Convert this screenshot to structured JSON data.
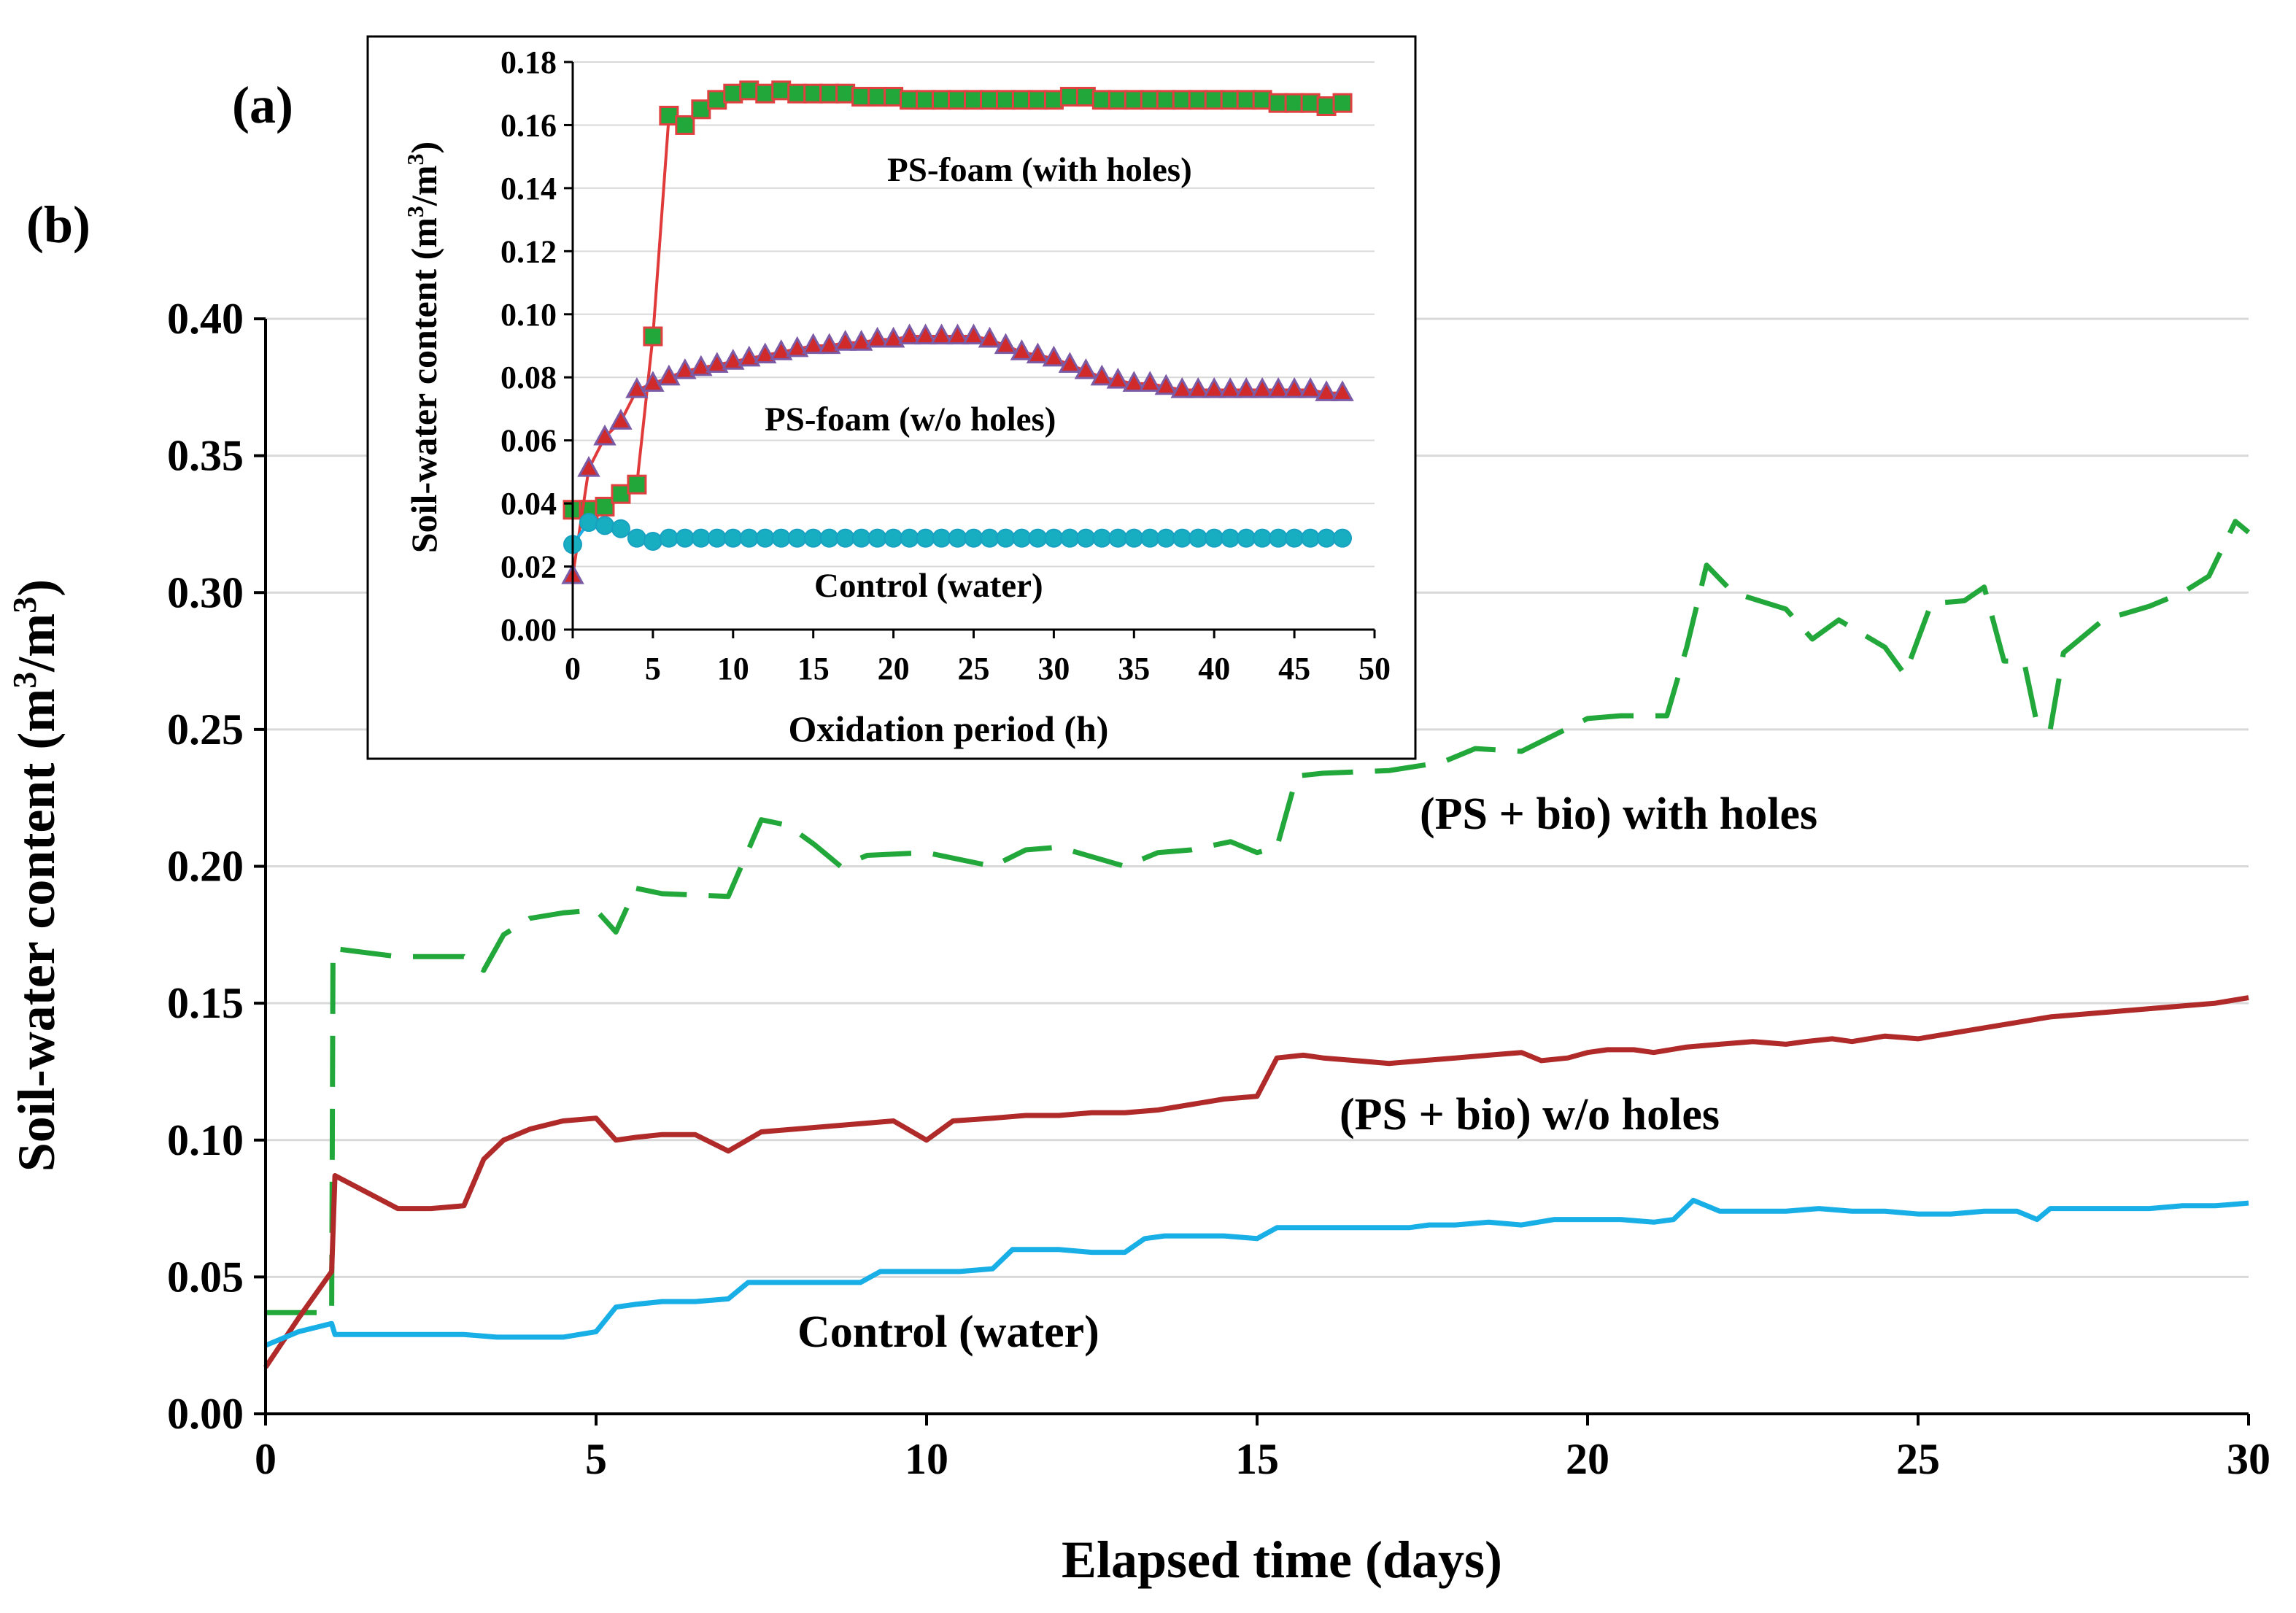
{
  "chart_data": [
    {
      "panel_label": "(b)",
      "type": "line",
      "xlabel": "Elapsed time (days)",
      "ylabel_main": "Soil-water content (m",
      "ylabel_sup1": "3",
      "ylabel_mid": "/m",
      "ylabel_sup2": "3",
      "ylabel_end": ")",
      "xlim": [
        0,
        30
      ],
      "ylim": [
        0,
        0.4
      ],
      "xticks": [
        "0",
        "5",
        "10",
        "15",
        "20",
        "25",
        "30"
      ],
      "yticks": [
        "0.00",
        "0.05",
        "0.10",
        "0.15",
        "0.20",
        "0.25",
        "0.30",
        "0.35",
        "0.40"
      ],
      "grid": "horizontal",
      "series": [
        {
          "name": "(PS + bio) with holes",
          "color": "#22a83a",
          "style": "dashed",
          "x": [
            0,
            1,
            1.02,
            2,
            3,
            3.3,
            3.6,
            4,
            4.5,
            5,
            5.3,
            5.6,
            6,
            7,
            7.5,
            7.9,
            8.3,
            8.7,
            9.1,
            10,
            11,
            11.5,
            12,
            13,
            13.5,
            14,
            14.6,
            15,
            15.3,
            15.6,
            16,
            17,
            17.8,
            18.3,
            19,
            20,
            20.5,
            21.2,
            21.5,
            21.8,
            22.2,
            23,
            23.4,
            23.8,
            24.5,
            24.8,
            25.2,
            25.7,
            26,
            26.3,
            26.6,
            26.8,
            27,
            27.2,
            27.8,
            28.5,
            29,
            29.4,
            29.8,
            30
          ],
          "values": [
            0.037,
            0.037,
            0.17,
            0.167,
            0.167,
            0.162,
            0.175,
            0.181,
            0.183,
            0.184,
            0.176,
            0.192,
            0.19,
            0.189,
            0.217,
            0.215,
            0.208,
            0.2,
            0.204,
            0.205,
            0.2,
            0.206,
            0.207,
            0.2,
            0.205,
            0.206,
            0.209,
            0.205,
            0.207,
            0.233,
            0.234,
            0.235,
            0.238,
            0.243,
            0.242,
            0.254,
            0.255,
            0.255,
            0.28,
            0.31,
            0.3,
            0.294,
            0.283,
            0.29,
            0.28,
            0.27,
            0.296,
            0.297,
            0.302,
            0.275,
            0.275,
            0.252,
            0.25,
            0.278,
            0.29,
            0.295,
            0.3,
            0.306,
            0.326,
            0.322
          ]
        },
        {
          "name": "(PS + bio) w/o holes",
          "color": "#b02a2a",
          "style": "solid",
          "x": [
            0,
            0.5,
            1,
            1.05,
            2,
            2.5,
            3,
            3.3,
            3.6,
            4,
            4.5,
            5,
            5.3,
            5.6,
            6,
            6.5,
            7,
            7.5,
            8,
            8.5,
            9,
            9.5,
            10,
            10.4,
            11,
            11.5,
            12,
            12.5,
            13,
            13.5,
            14,
            14.5,
            15,
            15.3,
            15.7,
            16,
            16.5,
            17,
            17.5,
            18,
            18.5,
            19,
            19.3,
            19.7,
            20,
            20.3,
            20.7,
            21,
            21.5,
            22,
            22.5,
            23,
            23.3,
            23.7,
            24,
            24.5,
            25,
            25.5,
            26,
            26.5,
            27,
            27.5,
            28,
            28.5,
            29,
            29.5,
            30
          ],
          "values": [
            0.017,
            0.035,
            0.052,
            0.087,
            0.075,
            0.075,
            0.076,
            0.093,
            0.1,
            0.104,
            0.107,
            0.108,
            0.1,
            0.101,
            0.102,
            0.102,
            0.096,
            0.103,
            0.104,
            0.105,
            0.106,
            0.107,
            0.1,
            0.107,
            0.108,
            0.109,
            0.109,
            0.11,
            0.11,
            0.111,
            0.113,
            0.115,
            0.116,
            0.13,
            0.131,
            0.13,
            0.129,
            0.128,
            0.129,
            0.13,
            0.131,
            0.132,
            0.129,
            0.13,
            0.132,
            0.133,
            0.133,
            0.132,
            0.134,
            0.135,
            0.136,
            0.135,
            0.136,
            0.137,
            0.136,
            0.138,
            0.137,
            0.139,
            0.141,
            0.143,
            0.145,
            0.146,
            0.147,
            0.148,
            0.149,
            0.15,
            0.152
          ]
        },
        {
          "name": "Control (water)",
          "color": "#18aee6",
          "style": "solid",
          "x": [
            0,
            0.5,
            1,
            1.05,
            2,
            3,
            3.5,
            4,
            4.5,
            5,
            5.3,
            5.6,
            6,
            6.5,
            7,
            7.3,
            7.6,
            8,
            8.5,
            9,
            9.3,
            9.6,
            10,
            10.5,
            11,
            11.3,
            11.6,
            12,
            12.5,
            13,
            13.3,
            13.6,
            14,
            14.5,
            15,
            15.3,
            15.6,
            16,
            16.5,
            17,
            17.3,
            17.6,
            18,
            18.5,
            19,
            19.5,
            20,
            20.5,
            21,
            21.3,
            21.6,
            22,
            22.5,
            23,
            23.5,
            24,
            24.5,
            25,
            25.5,
            26,
            26.5,
            26.8,
            27,
            27.5,
            28,
            28.5,
            29,
            29.5,
            30
          ],
          "values": [
            0.025,
            0.03,
            0.033,
            0.029,
            0.029,
            0.029,
            0.028,
            0.028,
            0.028,
            0.03,
            0.039,
            0.04,
            0.041,
            0.041,
            0.042,
            0.048,
            0.048,
            0.048,
            0.048,
            0.048,
            0.052,
            0.052,
            0.052,
            0.052,
            0.053,
            0.06,
            0.06,
            0.06,
            0.059,
            0.059,
            0.064,
            0.065,
            0.065,
            0.065,
            0.064,
            0.068,
            0.068,
            0.068,
            0.068,
            0.068,
            0.068,
            0.069,
            0.069,
            0.07,
            0.069,
            0.071,
            0.071,
            0.071,
            0.07,
            0.071,
            0.078,
            0.074,
            0.074,
            0.074,
            0.075,
            0.074,
            0.074,
            0.073,
            0.073,
            0.074,
            0.074,
            0.071,
            0.075,
            0.075,
            0.075,
            0.075,
            0.076,
            0.076,
            0.077
          ]
        }
      ]
    },
    {
      "panel_label": "(a)",
      "type": "line",
      "xlabel": "Oxidation period (h)",
      "ylabel_main": "Soil-water content (m",
      "ylabel_sup1": "3",
      "ylabel_mid": "/m",
      "ylabel_sup2": "3",
      "ylabel_end": ")",
      "xlim": [
        0,
        50
      ],
      "ylim": [
        0,
        0.18
      ],
      "xticks": [
        "0",
        "5",
        "10",
        "15",
        "20",
        "25",
        "30",
        "35",
        "40",
        "45",
        "50"
      ],
      "yticks": [
        "0.00",
        "0.02",
        "0.04",
        "0.06",
        "0.08",
        "0.10",
        "0.12",
        "0.14",
        "0.16",
        "0.18"
      ],
      "grid": "horizontal",
      "series": [
        {
          "name": "PS-foam (with holes)",
          "marker": "square",
          "color": "#e03a3a",
          "marker_fill": "#22a83a",
          "x": [
            0,
            1,
            2,
            3,
            4,
            5,
            6,
            7,
            8,
            9,
            10,
            11,
            12,
            13,
            14,
            15,
            16,
            17,
            18,
            19,
            20,
            21,
            22,
            23,
            24,
            25,
            26,
            27,
            28,
            29,
            30,
            31,
            32,
            33,
            34,
            35,
            36,
            37,
            38,
            39,
            40,
            41,
            42,
            43,
            44,
            45,
            46,
            47,
            48
          ],
          "values": [
            0.038,
            0.038,
            0.039,
            0.043,
            0.046,
            0.093,
            0.163,
            0.16,
            0.165,
            0.168,
            0.17,
            0.171,
            0.17,
            0.171,
            0.17,
            0.17,
            0.17,
            0.17,
            0.169,
            0.169,
            0.169,
            0.168,
            0.168,
            0.168,
            0.168,
            0.168,
            0.168,
            0.168,
            0.168,
            0.168,
            0.168,
            0.169,
            0.169,
            0.168,
            0.168,
            0.168,
            0.168,
            0.168,
            0.168,
            0.168,
            0.168,
            0.168,
            0.168,
            0.168,
            0.167,
            0.167,
            0.167,
            0.166,
            0.167
          ]
        },
        {
          "name": "PS-foam (w/o holes)",
          "marker": "triangle",
          "color": "#e03a3a",
          "marker_fill": "#d12a2a",
          "marker_stroke": "#7b5aa6",
          "x": [
            0,
            1,
            2,
            3,
            4,
            5,
            6,
            7,
            8,
            9,
            10,
            11,
            12,
            13,
            14,
            15,
            16,
            17,
            18,
            19,
            20,
            21,
            22,
            23,
            24,
            25,
            26,
            27,
            28,
            29,
            30,
            31,
            32,
            33,
            34,
            35,
            36,
            37,
            38,
            39,
            40,
            41,
            42,
            43,
            44,
            45,
            46,
            47,
            48
          ],
          "values": [
            0.017,
            0.051,
            0.061,
            0.066,
            0.076,
            0.078,
            0.08,
            0.082,
            0.083,
            0.084,
            0.085,
            0.086,
            0.087,
            0.088,
            0.089,
            0.09,
            0.09,
            0.091,
            0.091,
            0.092,
            0.092,
            0.093,
            0.093,
            0.093,
            0.093,
            0.093,
            0.092,
            0.09,
            0.088,
            0.087,
            0.086,
            0.084,
            0.082,
            0.08,
            0.079,
            0.078,
            0.078,
            0.077,
            0.076,
            0.076,
            0.076,
            0.076,
            0.076,
            0.076,
            0.076,
            0.076,
            0.076,
            0.075,
            0.075
          ]
        },
        {
          "name": "Control (water)",
          "marker": "circle",
          "color": "#18aee6",
          "marker_fill": "#18aec2",
          "x": [
            0,
            1,
            2,
            3,
            4,
            5,
            6,
            7,
            8,
            9,
            10,
            11,
            12,
            13,
            14,
            15,
            16,
            17,
            18,
            19,
            20,
            21,
            22,
            23,
            24,
            25,
            26,
            27,
            28,
            29,
            30,
            31,
            32,
            33,
            34,
            35,
            36,
            37,
            38,
            39,
            40,
            41,
            42,
            43,
            44,
            45,
            46,
            47,
            48
          ],
          "values": [
            0.027,
            0.034,
            0.033,
            0.032,
            0.029,
            0.028,
            0.029,
            0.029,
            0.029,
            0.029,
            0.029,
            0.029,
            0.029,
            0.029,
            0.029,
            0.029,
            0.029,
            0.029,
            0.029,
            0.029,
            0.029,
            0.029,
            0.029,
            0.029,
            0.029,
            0.029,
            0.029,
            0.029,
            0.029,
            0.029,
            0.029,
            0.029,
            0.029,
            0.029,
            0.029,
            0.029,
            0.029,
            0.029,
            0.029,
            0.029,
            0.029,
            0.029,
            0.029,
            0.029,
            0.029,
            0.029,
            0.029,
            0.029,
            0.029
          ]
        }
      ]
    }
  ]
}
